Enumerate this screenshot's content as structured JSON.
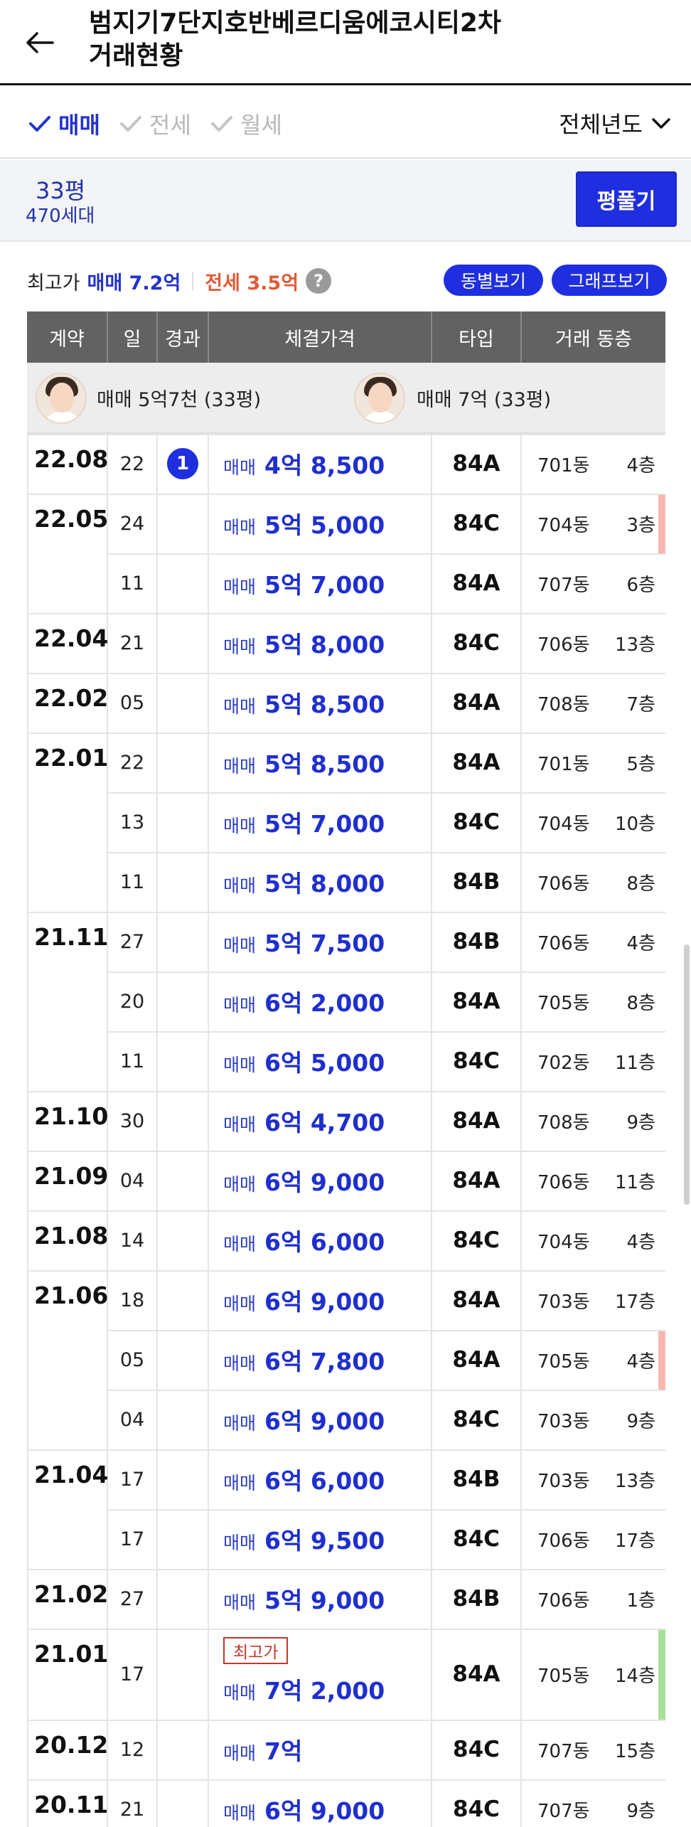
{
  "header": {
    "title_line1": "범지기7단지호반베르디움에코시티2차",
    "title_line2": "거래현황"
  },
  "filters": {
    "tabs": [
      {
        "label": "매매",
        "active": true
      },
      {
        "label": "전세",
        "active": false
      },
      {
        "label": "월세",
        "active": false
      }
    ],
    "year_select": "전체년도"
  },
  "size": {
    "pyeong": "33평",
    "units": "470세대",
    "toggle_label": "평풀기"
  },
  "summary": {
    "label": "최고가",
    "sale": "매매 7.2억",
    "jeonse": "전세 3.5억",
    "help_glyph": "?",
    "by_dong_label": "동별보기",
    "graph_label": "그래프보기"
  },
  "table": {
    "headers": [
      "계약",
      "일",
      "경과",
      "체결가격",
      "타입",
      "거래 동층"
    ],
    "top_entries": [
      {
        "text": "매매 5억7천 (33평)"
      },
      {
        "text": "매매 7억 (33평)"
      }
    ],
    "rows": [
      {
        "contract": "22.08",
        "day": "22",
        "elapsed": "1",
        "kind": "매매",
        "price": "4억 8,500",
        "type": "84A",
        "dong": "701동",
        "floor": "4층"
      },
      {
        "contract": "22.05",
        "day": "24",
        "elapsed": "",
        "kind": "매매",
        "price": "5억 5,000",
        "type": "84C",
        "dong": "704동",
        "floor": "3층",
        "flag": "#f6b8ae"
      },
      {
        "contract": "",
        "day": "11",
        "elapsed": "",
        "kind": "매매",
        "price": "5억 7,000",
        "type": "84A",
        "dong": "707동",
        "floor": "6층"
      },
      {
        "contract": "22.04",
        "day": "21",
        "elapsed": "",
        "kind": "매매",
        "price": "5억 8,000",
        "type": "84C",
        "dong": "706동",
        "floor": "13층"
      },
      {
        "contract": "22.02",
        "day": "05",
        "elapsed": "",
        "kind": "매매",
        "price": "5억 8,500",
        "type": "84A",
        "dong": "708동",
        "floor": "7층"
      },
      {
        "contract": "22.01",
        "day": "22",
        "elapsed": "",
        "kind": "매매",
        "price": "5억 8,500",
        "type": "84A",
        "dong": "701동",
        "floor": "5층"
      },
      {
        "contract": "",
        "day": "13",
        "elapsed": "",
        "kind": "매매",
        "price": "5억 7,000",
        "type": "84C",
        "dong": "704동",
        "floor": "10층"
      },
      {
        "contract": "",
        "day": "11",
        "elapsed": "",
        "kind": "매매",
        "price": "5억 8,000",
        "type": "84B",
        "dong": "706동",
        "floor": "8층"
      },
      {
        "contract": "21.11",
        "day": "27",
        "elapsed": "",
        "kind": "매매",
        "price": "5억 7,500",
        "type": "84B",
        "dong": "706동",
        "floor": "4층"
      },
      {
        "contract": "",
        "day": "20",
        "elapsed": "",
        "kind": "매매",
        "price": "6억 2,000",
        "type": "84A",
        "dong": "705동",
        "floor": "8층"
      },
      {
        "contract": "",
        "day": "11",
        "elapsed": "",
        "kind": "매매",
        "price": "6억 5,000",
        "type": "84C",
        "dong": "702동",
        "floor": "11층"
      },
      {
        "contract": "21.10",
        "day": "30",
        "elapsed": "",
        "kind": "매매",
        "price": "6억 4,700",
        "type": "84A",
        "dong": "708동",
        "floor": "9층"
      },
      {
        "contract": "21.09",
        "day": "04",
        "elapsed": "",
        "kind": "매매",
        "price": "6억 9,000",
        "type": "84A",
        "dong": "706동",
        "floor": "11층"
      },
      {
        "contract": "21.08",
        "day": "14",
        "elapsed": "",
        "kind": "매매",
        "price": "6억 6,000",
        "type": "84C",
        "dong": "704동",
        "floor": "4층"
      },
      {
        "contract": "21.06",
        "day": "18",
        "elapsed": "",
        "kind": "매매",
        "price": "6억 9,000",
        "type": "84A",
        "dong": "703동",
        "floor": "17층"
      },
      {
        "contract": "",
        "day": "05",
        "elapsed": "",
        "kind": "매매",
        "price": "6억 7,800",
        "type": "84A",
        "dong": "705동",
        "floor": "4층",
        "flag": "#f6b8ae"
      },
      {
        "contract": "",
        "day": "04",
        "elapsed": "",
        "kind": "매매",
        "price": "6억 9,000",
        "type": "84C",
        "dong": "703동",
        "floor": "9층"
      },
      {
        "contract": "21.04",
        "day": "17",
        "elapsed": "",
        "kind": "매매",
        "price": "6억 6,000",
        "type": "84B",
        "dong": "703동",
        "floor": "13층"
      },
      {
        "contract": "",
        "day": "17",
        "elapsed": "",
        "kind": "매매",
        "price": "6억 9,500",
        "type": "84C",
        "dong": "706동",
        "floor": "17층"
      },
      {
        "contract": "21.02",
        "day": "27",
        "elapsed": "",
        "kind": "매매",
        "price": "5억 9,000",
        "type": "84B",
        "dong": "706동",
        "floor": "1층"
      },
      {
        "contract": "21.01",
        "day": "17",
        "elapsed": "",
        "kind": "매매",
        "price": "7억 2,000",
        "type": "84A",
        "dong": "705동",
        "floor": "14층",
        "tag": "최고가",
        "flag": "#a7e09b"
      },
      {
        "contract": "20.12",
        "day": "12",
        "elapsed": "",
        "kind": "매매",
        "price": "7억",
        "type": "84C",
        "dong": "707동",
        "floor": "15층"
      },
      {
        "contract": "20.11",
        "day": "21",
        "elapsed": "",
        "kind": "매매",
        "price": "6억 9,000",
        "type": "84C",
        "dong": "707동",
        "floor": "9층"
      }
    ]
  },
  "colors": {
    "accent_blue": "#1f2fe0",
    "jeonse_orange": "#e05a36",
    "header_gray": "#626262"
  }
}
